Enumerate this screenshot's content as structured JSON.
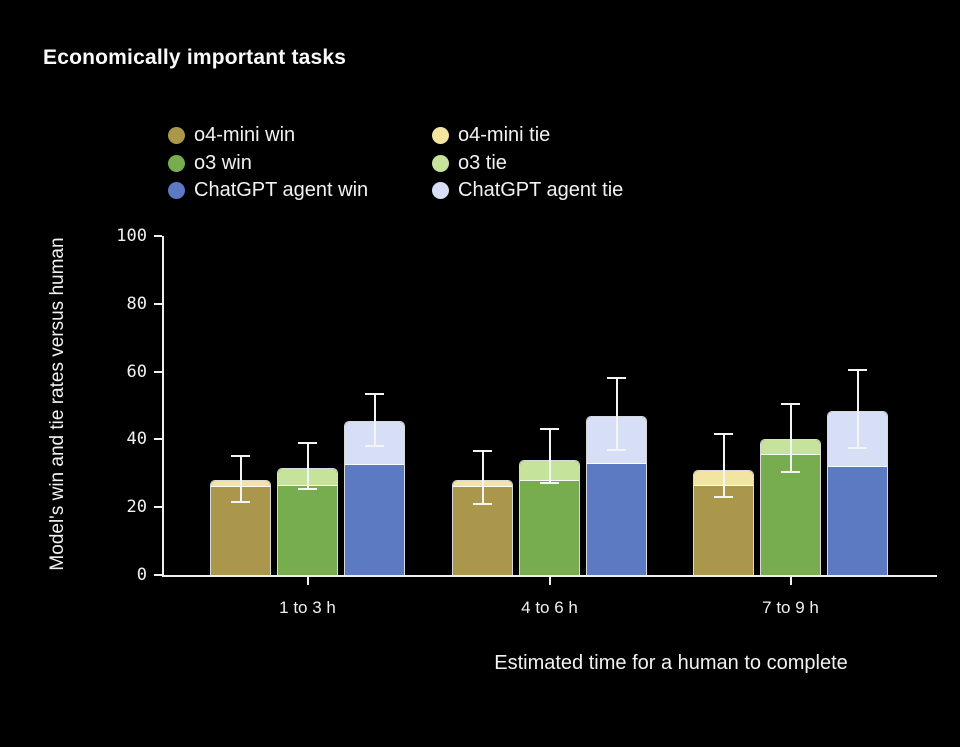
{
  "title": "Economically important tasks",
  "legend": {
    "items": [
      {
        "label": "o4-mini win",
        "color": "#ab974b"
      },
      {
        "label": "o4-mini tie",
        "color": "#f2e5a1"
      },
      {
        "label": "o3 win",
        "color": "#77ad4e"
      },
      {
        "label": "o3 tie",
        "color": "#c6e39c"
      },
      {
        "label": "ChatGPT agent win",
        "color": "#5c7ac2"
      },
      {
        "label": "ChatGPT agent tie",
        "color": "#d6dff5"
      }
    ]
  },
  "chart_data": {
    "type": "bar",
    "stacked": true,
    "title": "Economically important tasks",
    "xlabel": "Estimated time for a human to complete",
    "ylabel": "Model's win and tie rates versus human",
    "ylim": [
      0,
      100
    ],
    "yticks": [
      0,
      20,
      40,
      60,
      80,
      100
    ],
    "grid": false,
    "legend_position": "top",
    "background_color": "#000000",
    "axis_color": "#efefef",
    "text_color": "#f2f2f2",
    "categories": [
      "1 to 3 h",
      "4 to 6 h",
      "7 to 9 h"
    ],
    "series": [
      {
        "name": "o4-mini win",
        "color": "#ab974b",
        "values": [
          26,
          26,
          26.5
        ]
      },
      {
        "name": "o4-mini tie",
        "color": "#f2e5a1",
        "values": [
          2,
          2,
          4.5
        ]
      },
      {
        "name": "o3 win",
        "color": "#77ad4e",
        "values": [
          26.5,
          28,
          35.5
        ]
      },
      {
        "name": "o3 tie",
        "color": "#c6e39c",
        "values": [
          5,
          6,
          4.5
        ]
      },
      {
        "name": "ChatGPT agent win",
        "color": "#5c7ac2",
        "values": [
          32.5,
          33,
          32
        ]
      },
      {
        "name": "ChatGPT agent tie",
        "color": "#d6dff5",
        "values": [
          13,
          14,
          16.5
        ]
      }
    ],
    "error_bars": [
      {
        "model": "o4-mini",
        "low": [
          21.5,
          21,
          23
        ],
        "high": [
          35,
          36.5,
          41.5
        ]
      },
      {
        "model": "o3",
        "low": [
          25.5,
          27,
          30.5
        ],
        "high": [
          39,
          43,
          50.5
        ]
      },
      {
        "model": "ChatGPT agent",
        "low": [
          38,
          37,
          37.5
        ],
        "high": [
          53.5,
          58,
          60.5
        ]
      }
    ]
  }
}
